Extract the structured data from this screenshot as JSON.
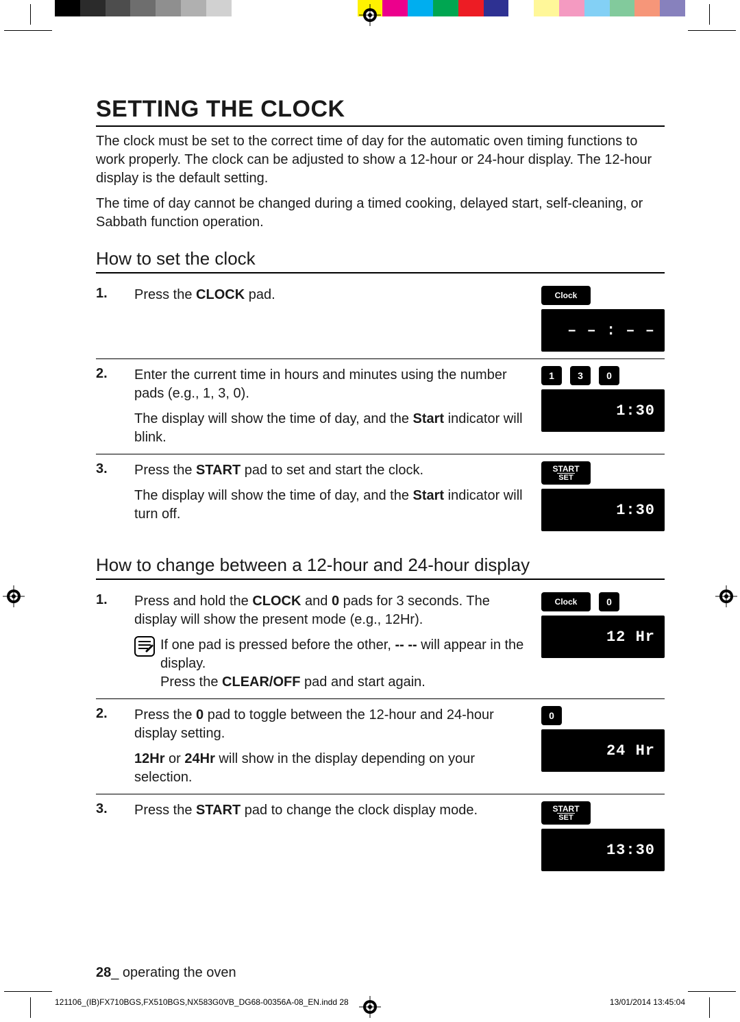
{
  "colorbar_colors": [
    "#000000",
    "#2b2b2b",
    "#4d4d4d",
    "#6e6e6e",
    "#8f8f8f",
    "#b0b0b0",
    "#d1d1d1",
    "#ffffff",
    "#ffffff",
    "#ffffff",
    "#ffffff",
    "#ffffff",
    "#fff200",
    "#ec008c",
    "#00aeef",
    "#00a651",
    "#ed1c24",
    "#2e3192",
    "#ffffff",
    "#fff799",
    "#f49ac1",
    "#83d0f5",
    "#82ca9c",
    "#f69679",
    "#8781bd"
  ],
  "title": "SETTING THE CLOCK",
  "intro": [
    "The clock must be set to the correct time of day for the automatic oven timing functions to work properly. The clock can be adjusted to show a 12-hour or 24-hour display. The 12-hour display is the default setting.",
    "The time of day cannot be changed during a timed cooking, delayed start, self-cleaning, or Sabbath function operation."
  ],
  "section1": {
    "heading": "How to set the clock",
    "steps": [
      {
        "n": "1.",
        "body_html": "Press the <b>CLOCK</b> pad.",
        "pads": [
          {
            "kind": "clock",
            "label": "Clock"
          }
        ],
        "display": "– – : – –"
      },
      {
        "n": "2.",
        "body_html": "Enter the current time in hours and minutes using the number pads (e.g., 1, 3, 0).",
        "body2_html": "The display will show the time of day, and the <b>Start</b> indicator will blink.",
        "pads": [
          {
            "kind": "num",
            "label": "1"
          },
          {
            "kind": "num",
            "label": "3"
          },
          {
            "kind": "num",
            "label": "0"
          }
        ],
        "display": "1:30"
      },
      {
        "n": "3.",
        "body_html": "Press the <b>START</b> pad to set and start the clock.",
        "body2_html": "The display will show the time of day, and the <b>Start</b> indicator will turn off.",
        "pads": [
          {
            "kind": "start",
            "label": "START",
            "sub": "SET"
          }
        ],
        "display": "1:30"
      }
    ]
  },
  "section2": {
    "heading": "How to change between a 12-hour and 24-hour display",
    "steps": [
      {
        "n": "1.",
        "body_html": "Press and hold the <b>CLOCK</b> and <b>0</b> pads for 3 seconds. The display will show the present mode (e.g., 12Hr).",
        "note_html": "If one pad is pressed before the other, <b>-- --</b> will appear in the display.<br>Press the <b>CLEAR/OFF</b> pad and start again.",
        "pads": [
          {
            "kind": "clock",
            "label": "Clock"
          },
          {
            "kind": "num",
            "label": "0"
          }
        ],
        "display": "12 Hr"
      },
      {
        "n": "2.",
        "body_html": "Press the <b>0</b> pad to toggle between the 12-hour and 24-hour display setting.",
        "body2_html": "<b>12Hr</b> or <b>24Hr</b> will show in the display depending on your selection.",
        "pads": [
          {
            "kind": "num",
            "label": "0"
          }
        ],
        "display": "24 Hr"
      },
      {
        "n": "3.",
        "body_html": "Press the <b>START</b> pad to change the clock display mode.",
        "pads": [
          {
            "kind": "start",
            "label": "START",
            "sub": "SET"
          }
        ],
        "display": "13:30"
      }
    ]
  },
  "footer": {
    "page": "28",
    "label": "_ operating the oven"
  },
  "printline": {
    "left": "121106_(IB)FX710BGS,FX510BGS,NX583G0VB_DG68-00356A-08_EN.indd   28",
    "right": "13/01/2014   13:45:04"
  }
}
